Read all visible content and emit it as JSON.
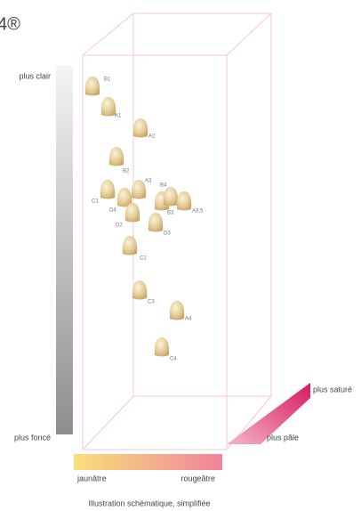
{
  "header": {
    "title": "4®"
  },
  "axes": {
    "lighter": "plus clair",
    "darker": "plus foncé",
    "more_saturated": "plus saturé",
    "paler": "plus pâle",
    "yellowish": "jaunâtre",
    "reddish": "rougeâtre"
  },
  "caption": "Illustration schématique, simplifiée",
  "nodes": [
    {
      "label": "B1"
    },
    {
      "label": "A1"
    },
    {
      "label": "A2"
    },
    {
      "label": "B2"
    },
    {
      "label": "A3"
    },
    {
      "label": "B4"
    },
    {
      "label": "B3"
    },
    {
      "label": "A3,5"
    },
    {
      "label": "C1"
    },
    {
      "label": "D4"
    },
    {
      "label": "D2"
    },
    {
      "label": "D3"
    },
    {
      "label": "C2"
    },
    {
      "label": "C3"
    },
    {
      "label": "A4"
    },
    {
      "label": "C4"
    }
  ]
}
